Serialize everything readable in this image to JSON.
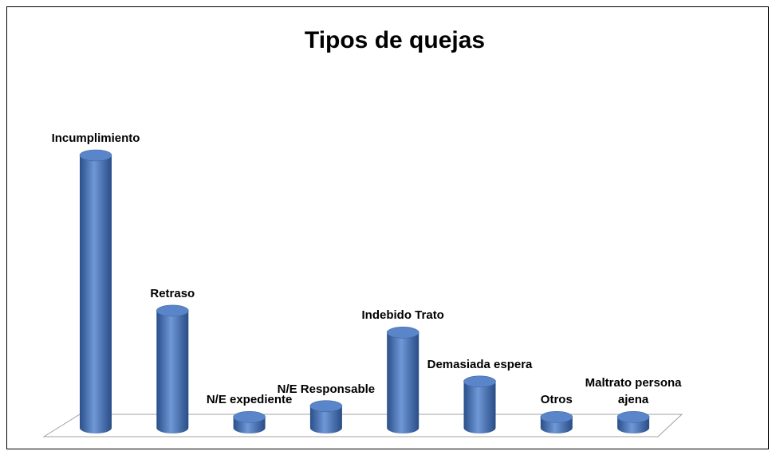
{
  "chart_data": {
    "type": "bar3d",
    "title": "Tipos de quejas",
    "categories": [
      "Incumplimiento",
      "Retraso",
      "N/E expediente",
      "N/E Responsable",
      "Indebido Trato",
      "Demasiada espera",
      "Otros",
      "Maltrato persona ajena"
    ],
    "values": [
      100,
      43,
      4,
      8,
      35,
      17,
      4,
      4
    ],
    "color": "#4a76bb"
  }
}
